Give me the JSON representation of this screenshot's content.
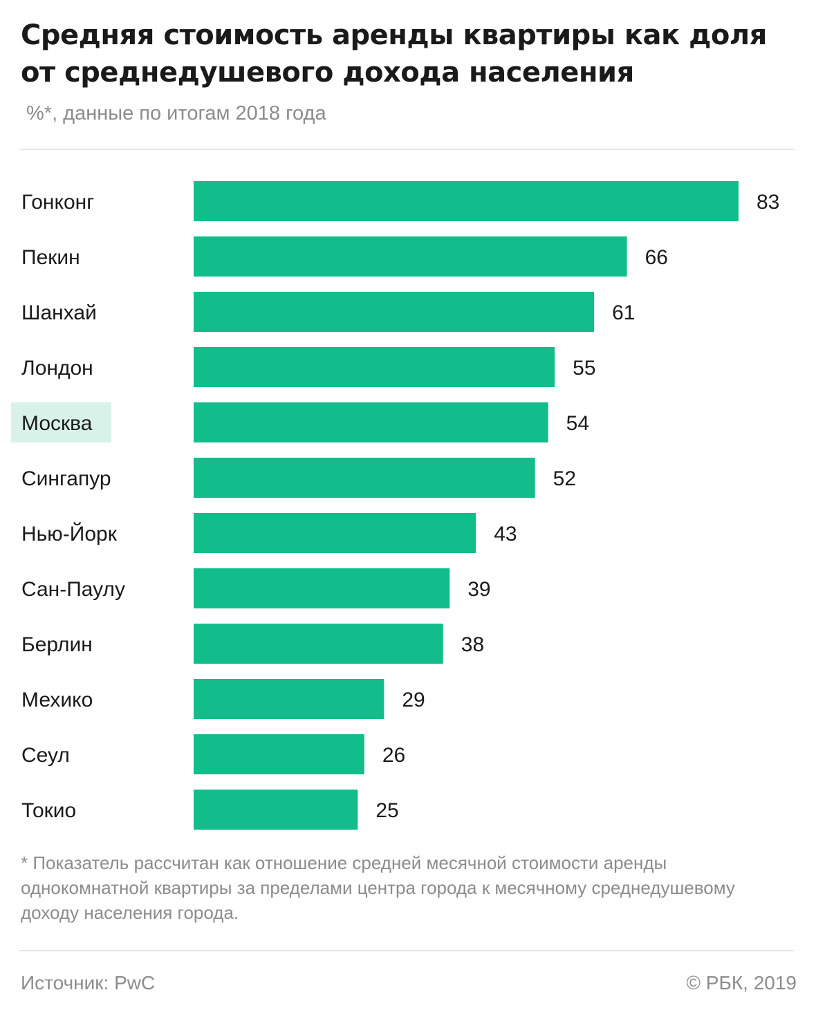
{
  "header": {
    "title": "Средняя стоимость аренды квартиры как доля от среднедушевого дохода населения",
    "subtitle": "%*, данные по итогам 2018 года"
  },
  "footer": {
    "note": "* Показатель рассчитан как отношение средней месячной стоимости аренды однокомнатной квартиры за пределами центра города к месячному среднедушевому доходу населения города.",
    "source": "Источник: PwC",
    "copyright": "© РБК, 2019"
  },
  "colors": {
    "bar": "#13bd8b",
    "highlight_bg": "#d8f2e9",
    "text": "#1a1a1a",
    "muted": "#8c8c8c"
  },
  "chart_data": {
    "type": "bar",
    "orientation": "horizontal",
    "title": "Средняя стоимость аренды квартиры как доля от среднедушевого дохода населения",
    "subtitle": "%*, данные по итогам 2018 года",
    "xlabel": "",
    "ylabel": "",
    "categories": [
      "Гонконг",
      "Пекин",
      "Шанхай",
      "Лондон",
      "Москва",
      "Сингапур",
      "Нью-Йорк",
      "Сан-Паулу",
      "Берлин",
      "Мехико",
      "Сеул",
      "Токио"
    ],
    "values": [
      83,
      66,
      61,
      55,
      54,
      52,
      43,
      39,
      38,
      29,
      26,
      25
    ],
    "xlim": [
      0,
      83
    ],
    "grid": false,
    "legend": "none",
    "highlighted_category": "Москва"
  }
}
